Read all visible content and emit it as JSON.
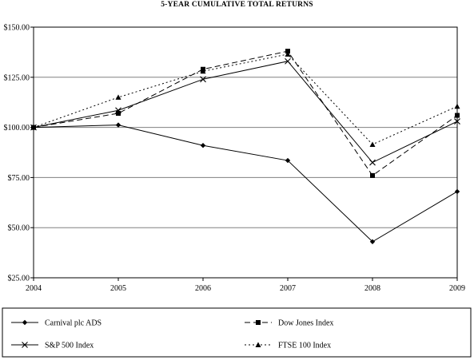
{
  "chart_data": {
    "type": "line",
    "title": "5-YEAR CUMULATIVE TOTAL RETURNS",
    "x": [
      "2004",
      "2005",
      "2006",
      "2007",
      "2008",
      "2009"
    ],
    "ylim": [
      25,
      150
    ],
    "yticks": [
      "$25.00",
      "$50.00",
      "$75.00",
      "$100.00",
      "$125.00",
      "$150.00"
    ],
    "ytick_values": [
      25,
      50,
      75,
      100,
      125,
      150
    ],
    "grid": true,
    "legend_position": "bottom",
    "series": [
      {
        "name": "Carnival plc ADS",
        "values": [
          100,
          101.2,
          91,
          83.5,
          43,
          68
        ],
        "marker": "diamond",
        "dash": "solid"
      },
      {
        "name": "Dow Jones Index",
        "values": [
          100,
          107,
          129,
          138,
          76,
          106
        ],
        "marker": "square",
        "dash": "dashed"
      },
      {
        "name": "S&P 500 Index",
        "values": [
          100,
          108.5,
          124,
          133,
          82.5,
          103
        ],
        "marker": "x",
        "dash": "solid"
      },
      {
        "name": "FTSE 100 Index",
        "values": [
          100,
          115,
          128,
          136.5,
          91.5,
          110.5
        ],
        "marker": "triangle",
        "dash": "dotted"
      }
    ]
  }
}
